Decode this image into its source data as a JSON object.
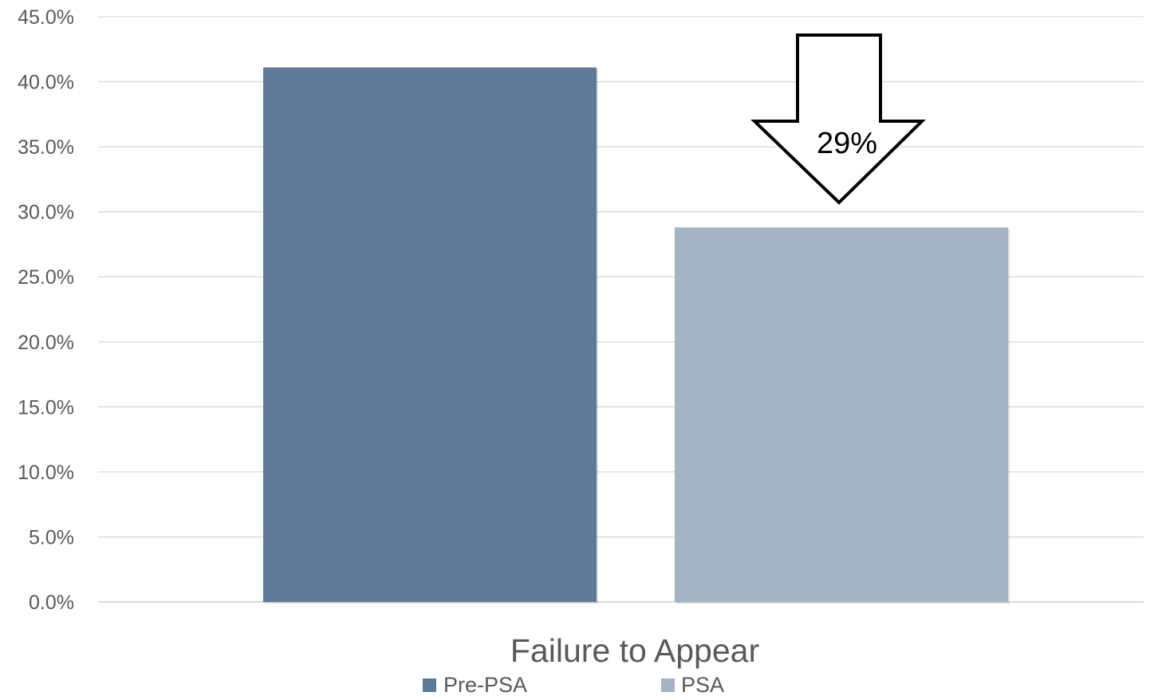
{
  "chart_data": {
    "type": "bar",
    "categories": [
      "Failure to Appear"
    ],
    "series": [
      {
        "name": "Pre-PSA",
        "values": [
          41.1
        ],
        "color": "#5f7a98"
      },
      {
        "name": "PSA",
        "values": [
          28.8
        ],
        "color": "#a5b4c4"
      }
    ],
    "title": "",
    "xlabel": "",
    "ylabel": "",
    "ylim": [
      0,
      45
    ],
    "y_ticks": [
      "0.0%",
      "5.0%",
      "10.0%",
      "15.0%",
      "20.0%",
      "25.0%",
      "30.0%",
      "35.0%",
      "40.0%",
      "45.0%"
    ],
    "grid": true,
    "legend_position": "bottom",
    "annotation": {
      "text": "29%",
      "shape": "down-arrow",
      "over_series": "PSA"
    }
  },
  "colors": {
    "gridline": "#d9d9d9",
    "axis_text": "#595959",
    "annotation_stroke": "#000000"
  }
}
